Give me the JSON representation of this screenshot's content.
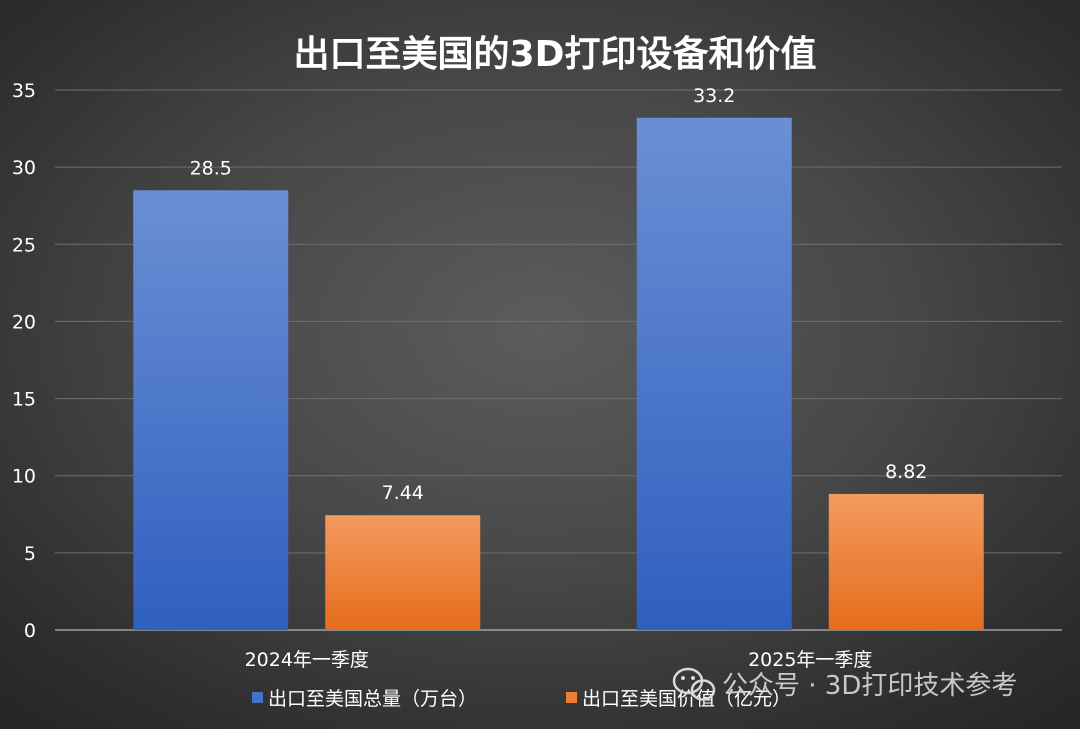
{
  "chart_data": {
    "type": "bar",
    "title": "出口至美国的3D打印设备和价值",
    "categories": [
      "2024年一季度",
      "2025年一季度"
    ],
    "series": [
      {
        "name": "出口至美国总量（万台）",
        "values": [
          28.5,
          33.2
        ],
        "labels": [
          "28.5",
          "33.2"
        ],
        "color": "#4472c4"
      },
      {
        "name": "出口至美国价值（亿元）",
        "values": [
          7.44,
          8.82
        ],
        "labels": [
          "7.44",
          "8.82"
        ],
        "color": "#ed7d31"
      }
    ],
    "ylim": [
      0,
      35
    ],
    "yticks": [
      0,
      5,
      10,
      15,
      20,
      25,
      30,
      35
    ],
    "grid": true,
    "legend": "bottom"
  },
  "watermark": {
    "text": "公众号 · 3D打印技术参考",
    "icon": "wechat-icon"
  }
}
